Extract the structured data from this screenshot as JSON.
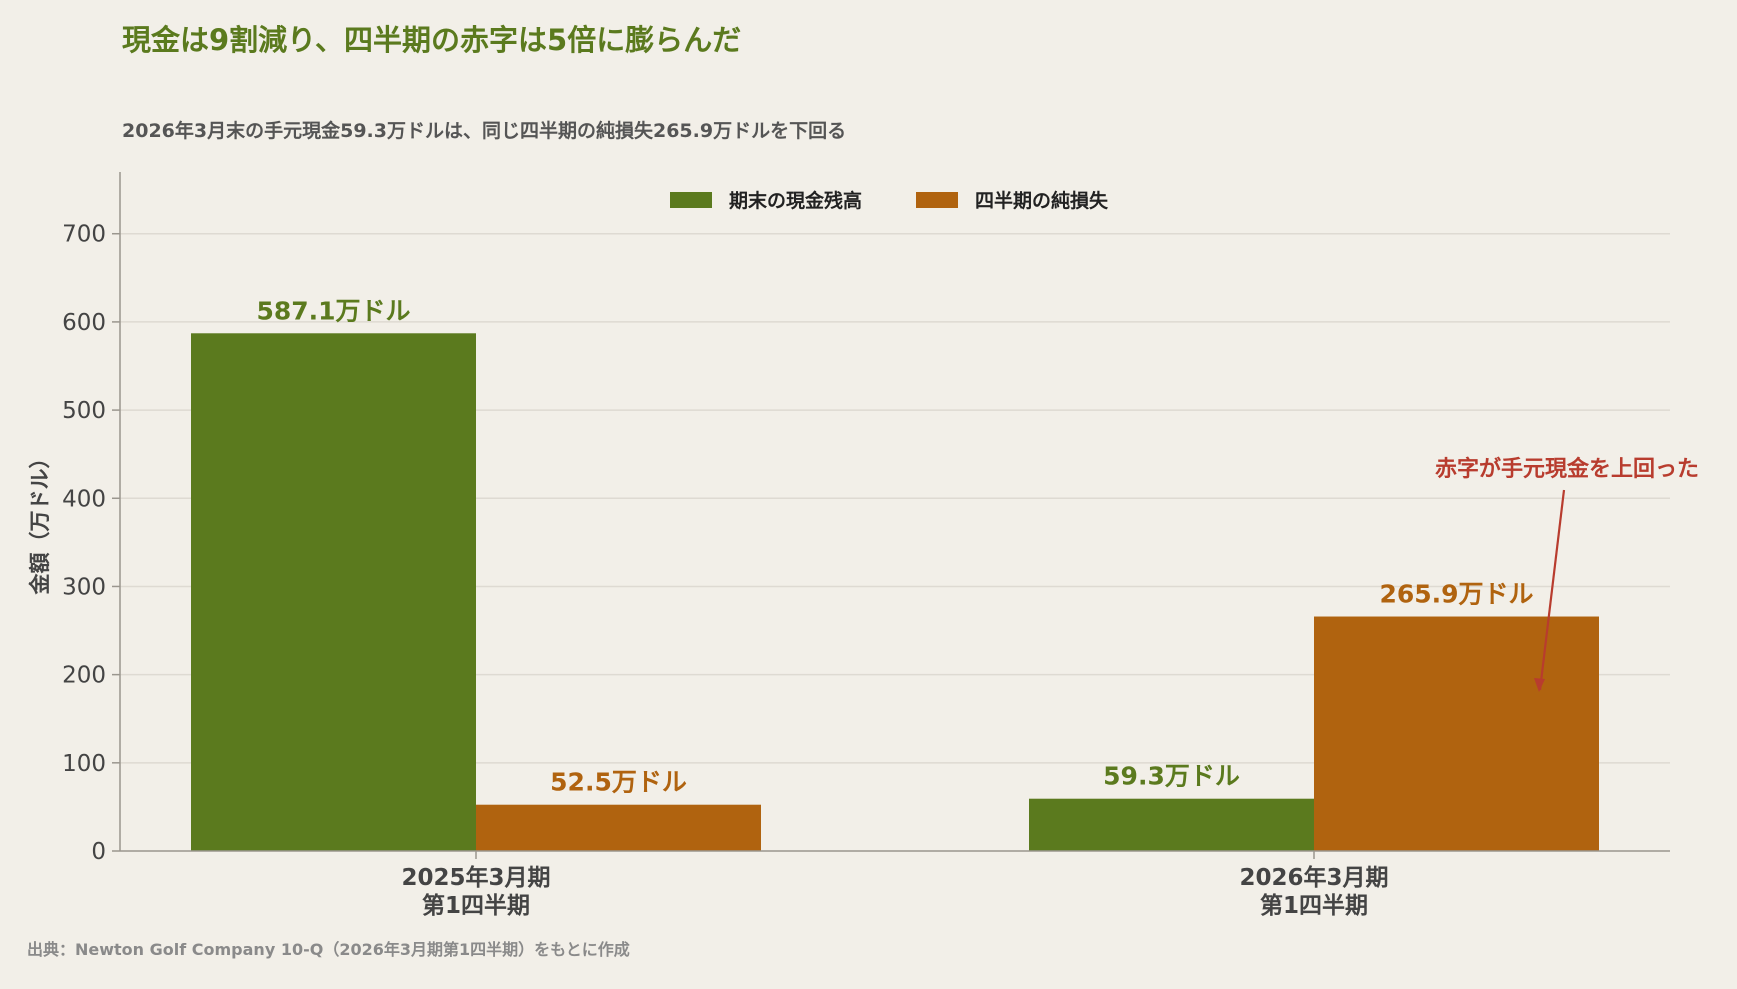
{
  "chart_data": {
    "type": "bar",
    "title": "現金は9割減り、四半期の赤字は5倍に膨らんだ",
    "subtitle": "2026年3月末の手元現金59.3万ドルは、同じ四半期の純損失265.9万ドルを下回る",
    "ylabel": "金額（万ドル）",
    "xlabel": "",
    "ylim": [
      0,
      770
    ],
    "yticks": [
      0,
      100,
      200,
      300,
      400,
      500,
      600,
      700
    ],
    "grid": true,
    "legend_position": "top-center",
    "categories": [
      [
        "2025年3月期",
        "第1四半期"
      ],
      [
        "2026年3月期",
        "第1四半期"
      ]
    ],
    "series": [
      {
        "name": "期末の現金残高",
        "color": "#5b7a1e",
        "values": [
          587.1,
          59.3
        ],
        "labels": [
          "587.1万ドル",
          "59.3万ドル"
        ]
      },
      {
        "name": "四半期の純損失",
        "color": "#b0630f",
        "values": [
          52.5,
          265.9
        ],
        "labels": [
          "52.5万ドル",
          "265.9万ドル"
        ]
      }
    ],
    "annotation": {
      "text": "赤字が手元現金を上回った",
      "color": "#b83c2e",
      "target_category": 1,
      "target_series": 1
    },
    "source": "出典：Newton Golf Company 10-Q（2026年3月期第1四半期）をもとに作成",
    "colors": {
      "background": "#f2efe8",
      "title": "#5b7a1e",
      "grid": "#dedad2",
      "axis": "#9a968e",
      "text": "#444444",
      "source": "#8a8a8a"
    }
  }
}
